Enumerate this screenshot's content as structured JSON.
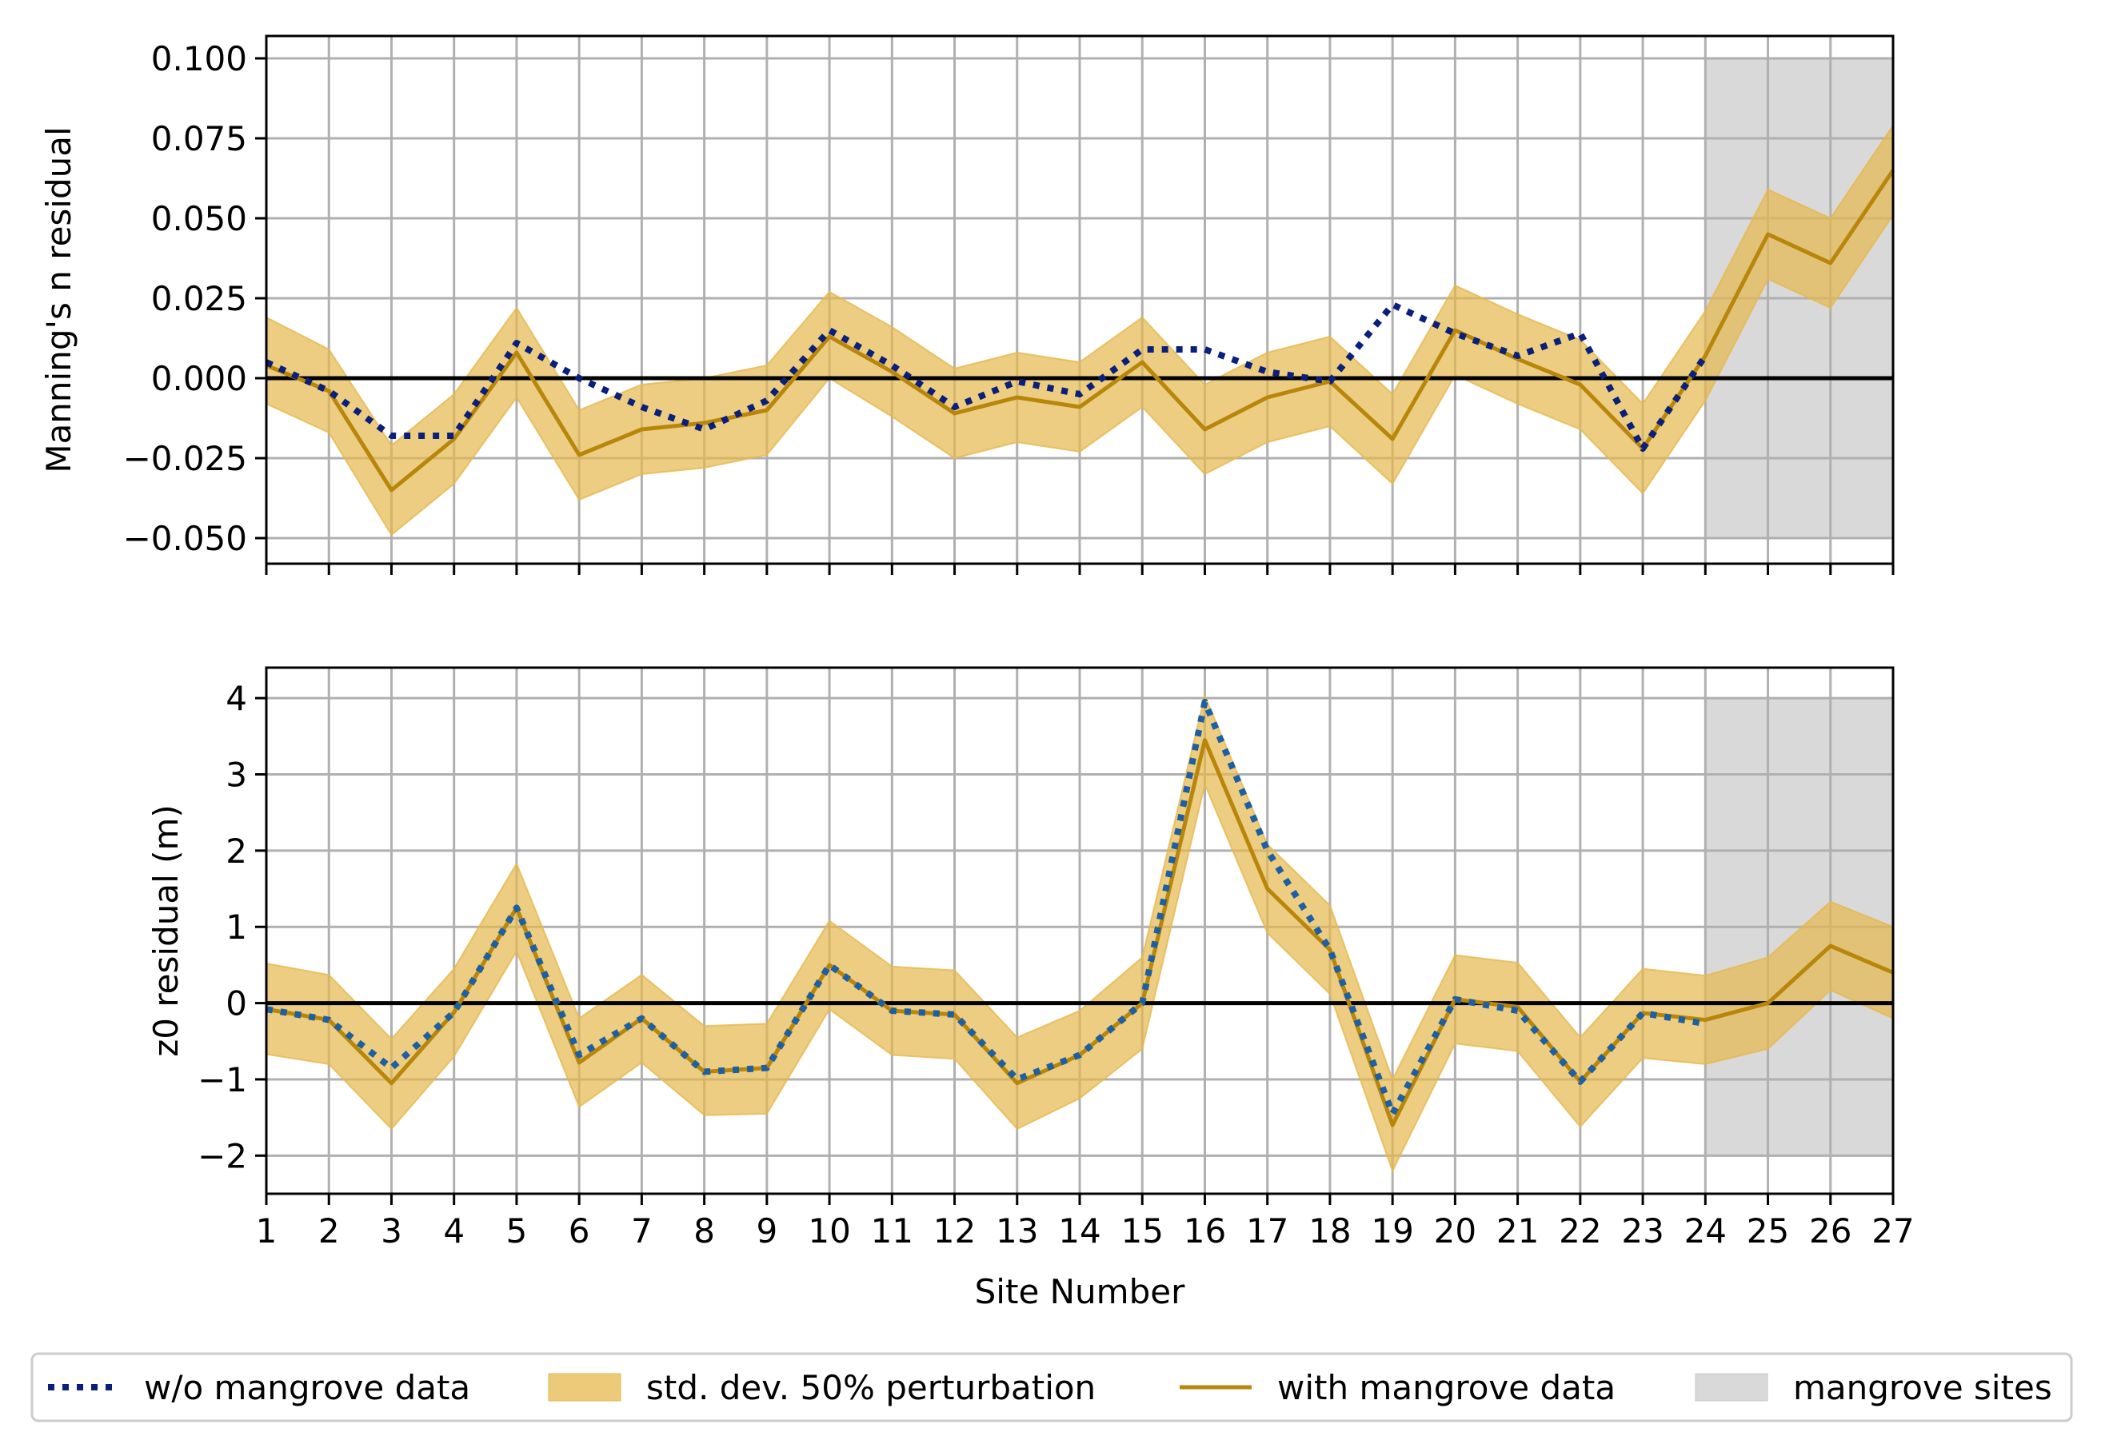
{
  "chart_data": [
    {
      "type": "line",
      "panel": "top",
      "ylabel": "Manning's n residual",
      "xlabel": "",
      "ylim": [
        -0.058,
        0.107
      ],
      "yticks": [
        -0.05,
        -0.025,
        0.0,
        0.025,
        0.05,
        0.075,
        0.1
      ],
      "ytick_labels": [
        "−0.050",
        "−0.025",
        "0.000",
        "0.025",
        "0.050",
        "0.075",
        "0.100"
      ],
      "grid": true,
      "mangrove_band": {
        "x": [
          24,
          27
        ],
        "y": [
          -0.05,
          0.1
        ]
      },
      "x": [
        1,
        2,
        3,
        4,
        5,
        6,
        7,
        8,
        9,
        10,
        11,
        12,
        13,
        14,
        15,
        16,
        17,
        18,
        19,
        20,
        21,
        22,
        23,
        24,
        25,
        26,
        27
      ],
      "series": [
        {
          "name": "w/o mangrove data",
          "style": "dotted",
          "color": "#0a1f7a",
          "values": [
            0.005,
            -0.004,
            -0.018,
            -0.018,
            0.011,
            0.0,
            -0.009,
            -0.016,
            -0.007,
            0.015,
            0.004,
            -0.009,
            -0.001,
            -0.005,
            0.009,
            0.009,
            0.002,
            -0.001,
            0.023,
            0.014,
            0.007,
            0.014,
            -0.022,
            0.007,
            null,
            null,
            null
          ]
        },
        {
          "name": "with mangrove data",
          "style": "solid",
          "color": "#b8860b",
          "values": [
            0.004,
            -0.004,
            -0.035,
            -0.019,
            0.008,
            -0.024,
            -0.016,
            -0.014,
            -0.01,
            0.013,
            0.002,
            -0.011,
            -0.006,
            -0.009,
            0.005,
            -0.016,
            -0.006,
            -0.001,
            -0.019,
            0.015,
            0.006,
            -0.002,
            -0.022,
            0.007,
            0.045,
            0.036,
            0.065
          ]
        },
        {
          "name": "std. dev. 50% perturbation",
          "style": "band",
          "color": "#e6b84d",
          "lower": [
            -0.008,
            -0.017,
            -0.049,
            -0.033,
            -0.006,
            -0.038,
            -0.03,
            -0.028,
            -0.024,
            0.0,
            -0.012,
            -0.025,
            -0.02,
            -0.023,
            -0.009,
            -0.03,
            -0.02,
            -0.015,
            -0.033,
            0.001,
            -0.008,
            -0.016,
            -0.036,
            -0.007,
            0.031,
            0.022,
            0.051
          ],
          "upper": [
            0.019,
            0.009,
            -0.021,
            -0.005,
            0.022,
            -0.01,
            -0.002,
            0.0,
            0.004,
            0.027,
            0.016,
            0.003,
            0.008,
            0.005,
            0.019,
            -0.002,
            0.008,
            0.013,
            -0.005,
            0.029,
            0.02,
            0.012,
            -0.008,
            0.021,
            0.059,
            0.05,
            0.079
          ]
        }
      ]
    },
    {
      "type": "line",
      "panel": "bottom",
      "ylabel": "z0 residual (m)",
      "xlabel": "Site Number",
      "ylim": [
        -2.5,
        4.4
      ],
      "yticks": [
        -2,
        -1,
        0,
        1,
        2,
        3,
        4
      ],
      "ytick_labels": [
        "−2",
        "−1",
        "0",
        "1",
        "2",
        "3",
        "4"
      ],
      "grid": true,
      "mangrove_band": {
        "x": [
          24,
          27
        ],
        "y": [
          -2,
          4
        ]
      },
      "x": [
        1,
        2,
        3,
        4,
        5,
        6,
        7,
        8,
        9,
        10,
        11,
        12,
        13,
        14,
        15,
        16,
        17,
        18,
        19,
        20,
        21,
        22,
        23,
        24,
        25,
        26,
        27
      ],
      "xtick_labels": [
        "1",
        "2",
        "3",
        "4",
        "5",
        "6",
        "7",
        "8",
        "9",
        "10",
        "11",
        "12",
        "13",
        "14",
        "15",
        "16",
        "17",
        "18",
        "19",
        "20",
        "21",
        "22",
        "23",
        "24",
        "25",
        "26",
        "27"
      ],
      "series": [
        {
          "name": "w/o mangrove data",
          "style": "dotted",
          "color": "#1d5fa0",
          "values": [
            -0.08,
            -0.22,
            -0.85,
            -0.12,
            1.25,
            -0.68,
            -0.2,
            -0.9,
            -0.85,
            0.5,
            -0.1,
            -0.15,
            -1.0,
            -0.68,
            0.0,
            3.95,
            2.0,
            0.7,
            -1.45,
            0.05,
            -0.1,
            -1.03,
            -0.13,
            -0.27,
            null,
            null,
            null
          ]
        },
        {
          "name": "with mangrove data",
          "style": "solid",
          "color": "#b8860b",
          "values": [
            -0.08,
            -0.22,
            -1.05,
            -0.12,
            1.25,
            -0.78,
            -0.2,
            -0.9,
            -0.85,
            0.5,
            -0.1,
            -0.15,
            -1.05,
            -0.68,
            0.0,
            3.45,
            1.5,
            0.7,
            -1.6,
            0.05,
            -0.05,
            -1.03,
            -0.13,
            -0.22,
            0.0,
            0.75,
            0.4
          ]
        },
        {
          "name": "std. dev. 50% perturbation",
          "style": "band",
          "color": "#e6b84d",
          "lower": [
            -0.67,
            -0.8,
            -1.65,
            -0.7,
            0.68,
            -1.36,
            -0.78,
            -1.47,
            -1.45,
            -0.08,
            -0.68,
            -0.73,
            -1.65,
            -1.25,
            -0.6,
            2.87,
            0.92,
            0.12,
            -2.2,
            -0.53,
            -0.63,
            -1.62,
            -0.72,
            -0.8,
            -0.6,
            0.17,
            -0.2
          ],
          "upper": [
            0.52,
            0.37,
            -0.47,
            0.45,
            1.83,
            -0.2,
            0.37,
            -0.3,
            -0.27,
            1.08,
            0.48,
            0.43,
            -0.45,
            -0.1,
            0.6,
            4.03,
            2.08,
            1.28,
            -1.0,
            0.63,
            0.53,
            -0.45,
            0.45,
            0.36,
            0.6,
            1.33,
            1.0
          ]
        }
      ]
    }
  ],
  "legend": {
    "entries": [
      {
        "label": "w/o mangrove data",
        "style": "dotted",
        "color": "#0a1f7a"
      },
      {
        "label": "std. dev. 50% perturbation",
        "style": "patch",
        "color": "#e6b84d"
      },
      {
        "label": "with mangrove data",
        "style": "solid",
        "color": "#b8860b"
      },
      {
        "label": "mangrove sites",
        "style": "patch",
        "color": "#d9d9d9"
      }
    ]
  }
}
